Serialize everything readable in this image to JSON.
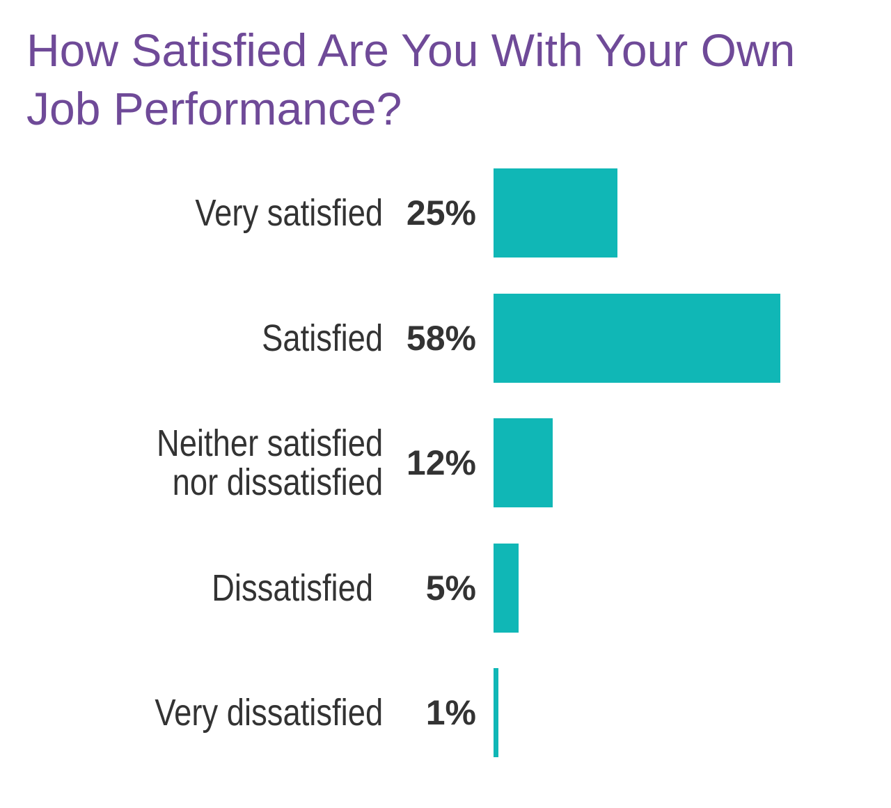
{
  "chart_data": {
    "type": "bar",
    "orientation": "horizontal",
    "title": "How Satisfied Are You With Your Own Job Performance?",
    "categories": [
      "Very satisfied",
      "Satisfied",
      "Neither satisfied\nnor dissatisfied",
      "Dissatisfied",
      "Very dissatisfied"
    ],
    "values": [
      25,
      58,
      12,
      5,
      1
    ],
    "value_labels": [
      "25%",
      "58%",
      "12%",
      "5%",
      "1%"
    ],
    "unit": "%",
    "xlim": [
      0,
      100
    ],
    "grid": false,
    "legend": "none",
    "colors": {
      "bar": "#10b7b6",
      "title": "#6f4a98",
      "text": "#333333"
    }
  }
}
